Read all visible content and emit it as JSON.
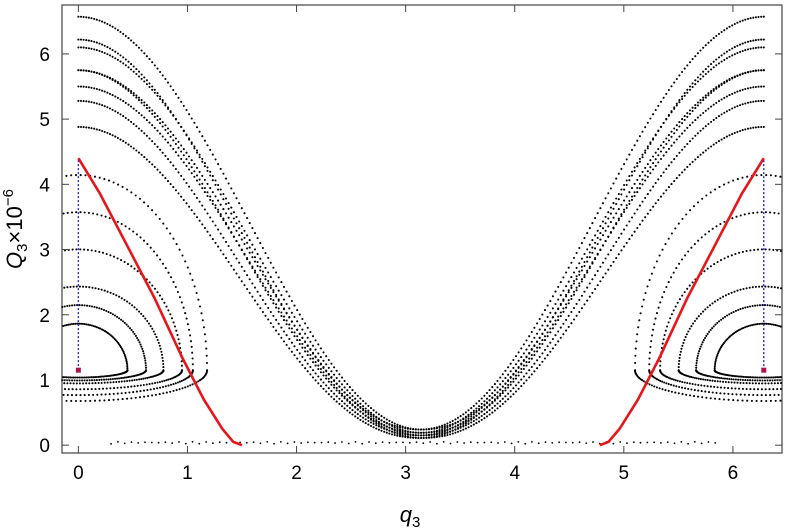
{
  "chart_data": {
    "type": "scatter",
    "title": "",
    "xlabel": "q3",
    "ylabel": "Q3×10^-6",
    "xlabel_parts": {
      "base": "q",
      "sub": "3"
    },
    "ylabel_parts": {
      "base": "Q",
      "sub": "3",
      "mid": "×10",
      "sup": "−6"
    },
    "xlim": [
      -0.15,
      6.45
    ],
    "ylim": [
      -0.12,
      6.75
    ],
    "x_ticks": [
      0,
      1,
      2,
      3,
      4,
      5,
      6
    ],
    "y_ticks": [
      0,
      1,
      2,
      3,
      4,
      5,
      6
    ],
    "grid": false,
    "legend": "none",
    "colors": {
      "orbits": "#000000",
      "separatrix": "#e8151b",
      "marker_line": "#2b2bd6",
      "marker_point": "#b0124e"
    },
    "orbit_params": {
      "top_left_intercepts": [
        6.22,
        5.75,
        5.28,
        4.88,
        4.3,
        4.02,
        3.27,
        3.1,
        2.19,
        2.12
      ],
      "top_right_intercepts": [
        6.57,
        6.1,
        5.75,
        5.5,
        5.28,
        4.88,
        4.3,
        3.3,
        3.1,
        2.12
      ],
      "island_centers": [
        0,
        6.283
      ],
      "island_center_Q": 1.15
    },
    "series": [
      {
        "name": "",
        "kind": "separatrix",
        "color": "#e8151b",
        "points": [
          [
            0.0,
            4.4
          ],
          [
            0.2,
            3.85
          ],
          [
            0.45,
            3.05
          ],
          [
            0.7,
            2.25
          ],
          [
            0.95,
            1.35
          ],
          [
            1.15,
            0.7
          ],
          [
            1.32,
            0.25
          ],
          [
            1.42,
            0.05
          ],
          [
            1.5,
            0.0
          ]
        ]
      },
      {
        "name": "",
        "kind": "separatrix",
        "color": "#e8151b",
        "points": [
          [
            4.78,
            0.0
          ],
          [
            4.86,
            0.05
          ],
          [
            4.96,
            0.25
          ],
          [
            5.13,
            0.7
          ],
          [
            5.33,
            1.35
          ],
          [
            5.58,
            2.25
          ],
          [
            5.83,
            3.05
          ],
          [
            6.08,
            3.85
          ],
          [
            6.283,
            4.4
          ]
        ]
      },
      {
        "name": "",
        "kind": "marker",
        "color": "#2b2bd6",
        "points": [
          [
            0,
            1.15
          ],
          [
            0,
            4.4
          ]
        ]
      },
      {
        "name": "",
        "kind": "marker",
        "color": "#2b2bd6",
        "points": [
          [
            6.283,
            1.15
          ],
          [
            6.283,
            4.4
          ]
        ]
      }
    ]
  }
}
